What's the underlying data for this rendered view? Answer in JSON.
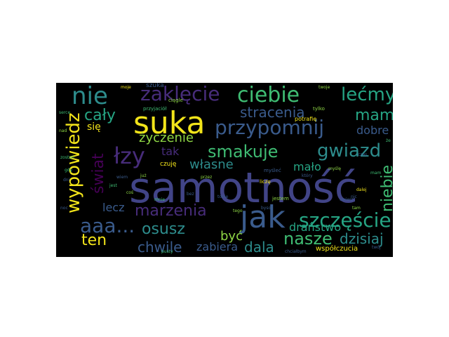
{
  "colors": {
    "background": "#000000",
    "yellow": "#f2e41a",
    "lime": "#8ed645",
    "green": "#3fbc73",
    "teal": "#26a584",
    "cyan": "#2d8c8c",
    "blue": "#3a5b8c",
    "indigo": "#414487",
    "purple": "#472c7a",
    "deep": "#440154"
  },
  "words": {
    "samotnosc": "samotność",
    "jak": "jak",
    "suka": "suka",
    "nie": "nie",
    "ciebie": "ciebie",
    "przypomnij": "przypomnij",
    "zaklecie": "zaklęcie",
    "lecmy": "lećmy",
    "szczescie": "szczęście",
    "wypowiedz": "wypowiedz",
    "lzy": "łzy",
    "smakuje": "smakuje",
    "gwiazd": "gwiazd",
    "mamy": "mamy",
    "caly": "cały",
    "stracenia": "stracenia",
    "aaa": "aaa...",
    "nasze": "nasze",
    "marzenia": "marzenia",
    "niebie": "niebie",
    "swiat": "świat",
    "ten": "ten",
    "osusz": "osusz",
    "zyczenie": "życzenie",
    "chwile": "chwile",
    "dala": "dala",
    "dzisiaj": "dzisiaj",
    "byc": "być",
    "zabiera": "zabiera",
    "lecz": "lecz",
    "dranstwo": "draństwo",
    "malo": "mało",
    "wlasne": "własne",
    "tak": "tak",
    "dobre": "dobre",
    "sie": "się",
    "wspolczucia": "współczucia",
    "czuje": "czuję",
    "szuka": "szuka",
    "ciagle": "ciągle",
    "przyjaciol": "przyjaciół",
    "potrafie": "potrafię",
    "tylko": "tylko",
    "licze": "liczę",
    "jestem": "jestem",
    "myslec": "myśleć",
    "byso": "byso",
    "moje": "moje",
    "twoje": "twoje",
    "chcialbym": "chciałbym",
    "ciebie_small": "ciebie",
    "nad": "nad",
    "serce": "serce",
    "dni": "dni",
    "jest": "jest",
    "cos": "coś",
    "nic": "nic",
    "twoj": "twój",
    "mysle": "myślę",
    "czas": "czas",
    "ze": "że",
    "noc": "noc",
    "juz": "już",
    "dalej": "dalej",
    "zostan": "zostań",
    "ktory": "który",
    "gdy": "gdy",
    "tam": "tam",
    "tobie": "tobie",
    "mnie": "mnie",
    "wiem": "wiem",
    "przez": "przez",
    "mam": "mam",
    "bez": "bez",
    "tego": "tego",
    "pusty": "pusty",
    "uwierz": "uwierz"
  }
}
